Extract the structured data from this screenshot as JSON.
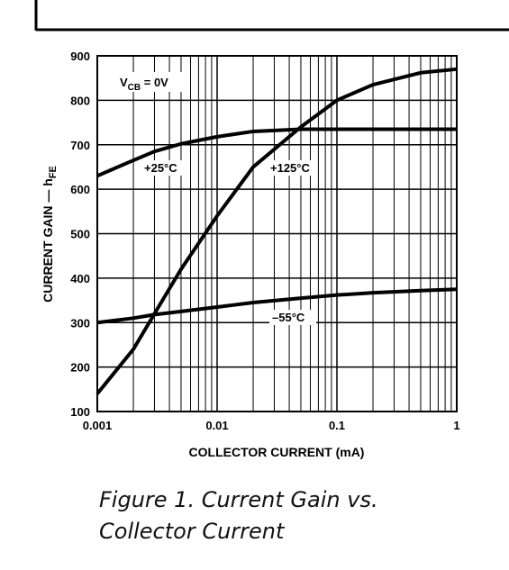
{
  "chart_data": {
    "type": "line",
    "xlabel": "COLLECTOR CURRENT (mA)",
    "ylabel": {
      "text": "CURRENT GAIN — h",
      "sub": "FE"
    },
    "annotation": {
      "text": "V",
      "sub": "CB",
      "rest": " = 0V"
    },
    "caption": [
      "Figure 1.  Current Gain vs.",
      "Collector Current"
    ],
    "x": [
      0.001,
      0.002,
      0.003,
      0.005,
      0.01,
      0.02,
      0.05,
      0.1,
      0.2,
      0.5,
      1
    ],
    "series": [
      {
        "name": "+25°C",
        "color": "#000000",
        "values": [
          630,
          665,
          685,
          702,
          718,
          730,
          735,
          735,
          735,
          735,
          735
        ]
      },
      {
        "name": "+125°C",
        "color": "#000000",
        "values": [
          140,
          240,
          320,
          420,
          540,
          650,
          740,
          800,
          835,
          862,
          870
        ]
      },
      {
        "name": "–55°C",
        "color": "#000000",
        "values": [
          300,
          310,
          318,
          325,
          335,
          345,
          355,
          362,
          367,
          372,
          375
        ]
      }
    ],
    "xscale": "log",
    "xlim": [
      0.001,
      1
    ],
    "xticks": [
      0.001,
      0.01,
      0.1,
      1
    ],
    "minor_xticks": [
      0.002,
      0.003,
      0.004,
      0.005,
      0.006,
      0.007,
      0.008,
      0.009,
      0.02,
      0.03,
      0.04,
      0.05,
      0.06,
      0.07,
      0.08,
      0.09,
      0.2,
      0.3,
      0.4,
      0.5,
      0.6,
      0.7,
      0.8,
      0.9
    ],
    "ylim": [
      100,
      900
    ],
    "yticks": [
      100,
      200,
      300,
      400,
      500,
      600,
      700,
      800,
      900
    ],
    "grid": true
  }
}
